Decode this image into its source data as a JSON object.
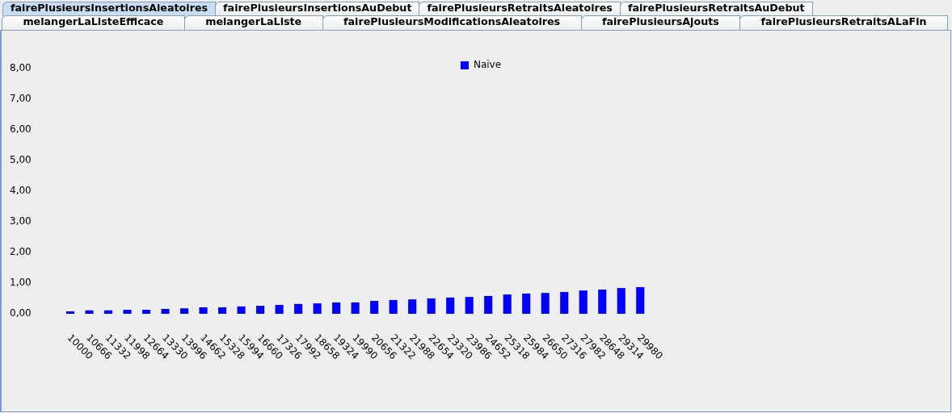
{
  "chart_data": {
    "type": "bar",
    "title": "fairePlusieursInsertionsAleatoires",
    "annotations": [
      "fairePlusieursInsertionsAuDebut",
      "fairePlusieursRetraitsAleatoires",
      "fairePlusieursRetraitsAuDebut",
      "melangerLaListeEfficace",
      "melangerLaListe",
      "fairePlusieursModificationsAleatoires",
      "fairePlusieursAjouts",
      "fairePlusieursRetraitsALaFin"
    ],
    "categories": [
      "10000",
      "10666",
      "11332",
      "11998",
      "12664",
      "13330",
      "13996",
      "14662",
      "15328",
      "15994",
      "16660",
      "17326",
      "17992",
      "18658",
      "19324",
      "19990",
      "20656",
      "21322",
      "21988",
      "22654",
      "23320",
      "23986",
      "24652",
      "25318",
      "25984",
      "26650",
      "27316",
      "27982",
      "28648",
      "29314",
      "29980"
    ],
    "series": [
      {
        "name": "Naive",
        "color": "#0000ff",
        "values": [
          0.08,
          0.11,
          0.11,
          0.13,
          0.13,
          0.16,
          0.18,
          0.21,
          0.21,
          0.24,
          0.26,
          0.29,
          0.32,
          0.34,
          0.37,
          0.37,
          0.42,
          0.45,
          0.47,
          0.5,
          0.53,
          0.55,
          0.58,
          0.63,
          0.66,
          0.68,
          0.71,
          0.76,
          0.79,
          0.84,
          0.87
        ]
      }
    ],
    "ylim": [
      0,
      8
    ],
    "yticks": [
      {
        "value": 0,
        "label": "0,00"
      },
      {
        "value": 1,
        "label": "1,00"
      },
      {
        "value": 2,
        "label": "2,00"
      },
      {
        "value": 3,
        "label": "3,00"
      },
      {
        "value": 4,
        "label": "4,00"
      },
      {
        "value": 5,
        "label": "5,00"
      },
      {
        "value": 6,
        "label": "6,00"
      },
      {
        "value": 7,
        "label": "7,00"
      },
      {
        "value": 8,
        "label": "8,00"
      }
    ],
    "legend": "top"
  }
}
